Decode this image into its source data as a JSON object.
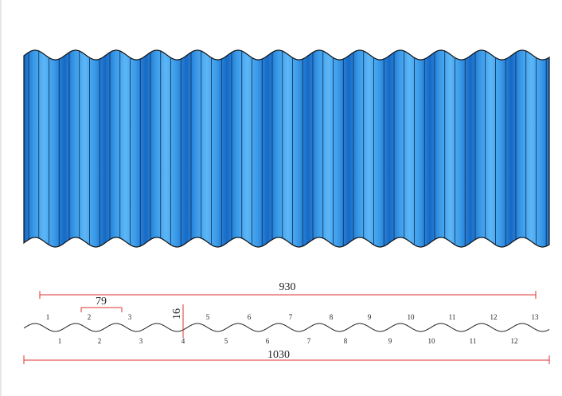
{
  "dimensions": {
    "overall_width": "930",
    "pitch": "79",
    "height": "16",
    "full_width": "1030"
  },
  "top_labels": [
    "1",
    "2",
    "3",
    "5",
    "6",
    "7",
    "8",
    "9",
    "10",
    "11",
    "12",
    "13"
  ],
  "bottom_labels": [
    "1",
    "2",
    "3",
    "4",
    "5",
    "6",
    "7",
    "8",
    "9",
    "10",
    "11",
    "12"
  ]
}
